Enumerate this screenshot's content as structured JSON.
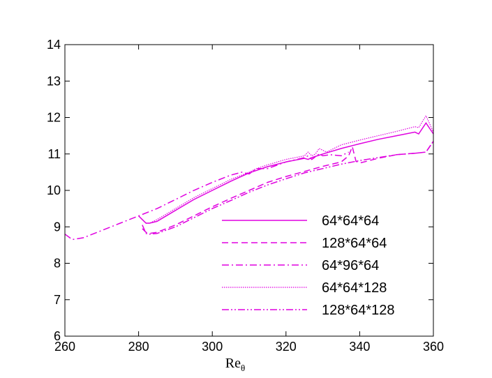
{
  "chart_data": {
    "type": "line",
    "title": "",
    "xlabel": "Re",
    "xlabel_subscript": "θ",
    "ylabel": "",
    "xlim": [
      260,
      360
    ],
    "ylim": [
      6,
      14
    ],
    "xticks": [
      260,
      280,
      300,
      320,
      340,
      360
    ],
    "yticks": [
      6,
      7,
      8,
      9,
      10,
      11,
      12,
      13,
      14
    ],
    "grid": false,
    "legend_position": "bottom-right",
    "line_color": "#e000e0",
    "series": [
      {
        "name": "64*64*64",
        "style": "solid",
        "x": [
          280,
          281,
          282,
          283,
          285,
          290,
          295,
          300,
          305,
          310,
          315,
          320,
          325,
          326,
          327,
          330,
          335,
          340,
          345,
          350,
          355,
          356,
          358,
          360
        ],
        "y": [
          9.3,
          9.2,
          9.1,
          9.1,
          9.15,
          9.45,
          9.75,
          10.0,
          10.25,
          10.48,
          10.65,
          10.78,
          10.88,
          10.85,
          10.9,
          11.0,
          11.15,
          11.28,
          11.4,
          11.5,
          11.6,
          11.55,
          11.85,
          11.55
        ]
      },
      {
        "name": "128*64*64",
        "style": "dashed",
        "x": [
          281,
          282,
          283,
          285,
          290,
          295,
          300,
          305,
          310,
          315,
          320,
          325,
          330,
          335,
          337,
          338,
          339,
          340,
          345,
          350,
          355,
          358,
          360
        ],
        "y": [
          8.95,
          8.85,
          8.82,
          8.85,
          9.05,
          9.3,
          9.55,
          9.78,
          10.0,
          10.22,
          10.38,
          10.52,
          10.66,
          10.78,
          10.95,
          11.2,
          10.8,
          10.75,
          10.88,
          10.98,
          11.02,
          11.05,
          11.35
        ]
      },
      {
        "name": "64*96*64",
        "style": "dashdot",
        "x": [
          260,
          262,
          265,
          270,
          275,
          280,
          285,
          290,
          295,
          300,
          305,
          308,
          310,
          312,
          315,
          320,
          325,
          326,
          327,
          329,
          330,
          332,
          335,
          337
        ],
        "y": [
          8.8,
          8.65,
          8.7,
          8.9,
          9.1,
          9.3,
          9.5,
          9.75,
          10.0,
          10.22,
          10.42,
          10.5,
          10.45,
          10.6,
          10.6,
          10.78,
          10.9,
          10.95,
          10.85,
          11.0,
          10.95,
          10.98,
          10.95,
          11.05
        ]
      },
      {
        "name": "64*64*128",
        "style": "dotted",
        "x": [
          280,
          281,
          282,
          283,
          285,
          290,
          295,
          300,
          305,
          310,
          311,
          312,
          315,
          320,
          325,
          326,
          327,
          328,
          329,
          330,
          331,
          335,
          340,
          345,
          350,
          355,
          356,
          358,
          360
        ],
        "y": [
          9.3,
          9.2,
          9.1,
          9.1,
          9.2,
          9.5,
          9.8,
          10.05,
          10.3,
          10.5,
          10.55,
          10.6,
          10.7,
          10.85,
          10.95,
          11.05,
          10.95,
          11.0,
          11.15,
          11.1,
          11.05,
          11.25,
          11.38,
          11.5,
          11.62,
          11.75,
          11.72,
          12.05,
          11.6
        ]
      },
      {
        "name": "128*64*128",
        "style": "dashdotdot",
        "x": [
          281,
          282,
          283,
          285,
          290,
          295,
          300,
          305,
          310,
          315,
          320,
          325,
          330,
          335,
          340,
          345,
          350,
          355,
          358,
          360
        ],
        "y": [
          9.05,
          8.82,
          8.8,
          8.82,
          9.0,
          9.25,
          9.5,
          9.72,
          9.95,
          10.15,
          10.32,
          10.48,
          10.6,
          10.72,
          10.82,
          10.9,
          10.98,
          11.02,
          11.05,
          11.35
        ]
      }
    ]
  }
}
